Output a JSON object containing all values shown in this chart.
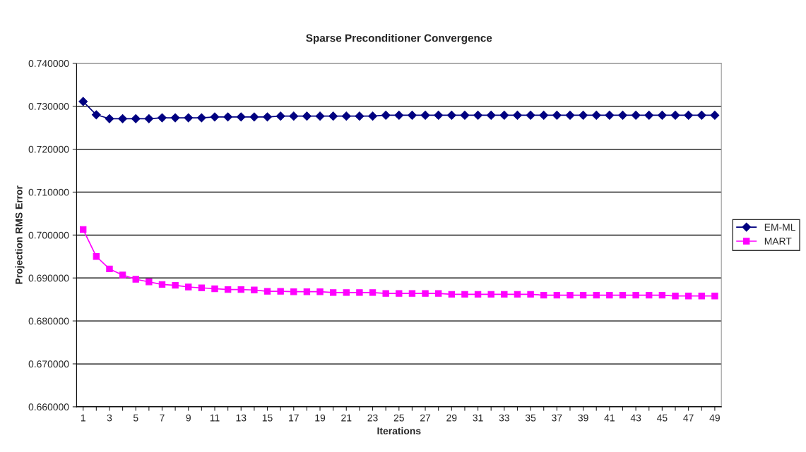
{
  "chart_data": {
    "type": "line",
    "title": "Sparse Preconditioner Convergence",
    "xlabel": "Iterations",
    "ylabel": "Projection RMS Error",
    "categories": [
      "1",
      null,
      "3",
      null,
      "5",
      null,
      "7",
      null,
      "9",
      null,
      "11",
      null,
      "13",
      null,
      "15",
      null,
      "17",
      null,
      "19",
      null,
      "21",
      null,
      "23",
      null,
      "25",
      null,
      "27",
      null,
      "29",
      null,
      "31",
      null,
      "33",
      null,
      "35",
      null,
      "37",
      null,
      "39",
      null,
      "41",
      null,
      "43",
      null,
      "45",
      null,
      "47",
      null,
      "49"
    ],
    "series": [
      {
        "name": "EM-ML",
        "color": "#000080",
        "marker": "diamond",
        "values": [
          0.7311,
          0.728,
          0.7271,
          0.7271,
          0.7271,
          0.7271,
          0.7273,
          0.7273,
          0.7273,
          0.7273,
          0.7275,
          0.7275,
          0.7275,
          0.7275,
          0.7275,
          0.7277,
          0.7277,
          0.7277,
          0.7277,
          0.7277,
          0.7277,
          0.7277,
          0.7277,
          0.7279,
          0.7279,
          0.7279,
          0.7279,
          0.7279,
          0.7279,
          0.7279,
          0.7279,
          0.7279,
          0.7279,
          0.7279,
          0.7279,
          0.7279,
          0.7279,
          0.7279,
          0.7279,
          0.7279,
          0.7279,
          0.7279,
          0.7279,
          0.7279,
          0.7279,
          0.7279,
          0.7279,
          0.7279,
          0.7279
        ]
      },
      {
        "name": "MART",
        "color": "#ff00ff",
        "marker": "square",
        "values": [
          0.7013,
          0.695,
          0.6921,
          0.6907,
          0.6897,
          0.6891,
          0.6885,
          0.6883,
          0.6879,
          0.6877,
          0.6875,
          0.6873,
          0.6873,
          0.6872,
          0.6869,
          0.6869,
          0.6868,
          0.6868,
          0.6868,
          0.6866,
          0.6866,
          0.6866,
          0.6866,
          0.6864,
          0.6864,
          0.6864,
          0.6864,
          0.6864,
          0.6862,
          0.6862,
          0.6862,
          0.6862,
          0.6862,
          0.6862,
          0.6862,
          0.686,
          0.686,
          0.686,
          0.686,
          0.686,
          0.686,
          0.686,
          0.686,
          0.686,
          0.686,
          0.6858,
          0.6858,
          0.6858,
          0.6858
        ]
      }
    ],
    "ylim": [
      0.66,
      0.74
    ],
    "yticks": [
      {
        "value": 0.66,
        "label": "0.660000"
      },
      {
        "value": 0.67,
        "label": "0.670000"
      },
      {
        "value": 0.68,
        "label": "0.680000"
      },
      {
        "value": 0.69,
        "label": "0.690000"
      },
      {
        "value": 0.7,
        "label": "0.700000"
      },
      {
        "value": 0.71,
        "label": "0.710000"
      },
      {
        "value": 0.72,
        "label": "0.720000"
      },
      {
        "value": 0.73,
        "label": "0.730000"
      },
      {
        "value": 0.74,
        "label": "0.740000"
      }
    ],
    "grid": "y",
    "legend": "right",
    "line_style": "solid"
  }
}
